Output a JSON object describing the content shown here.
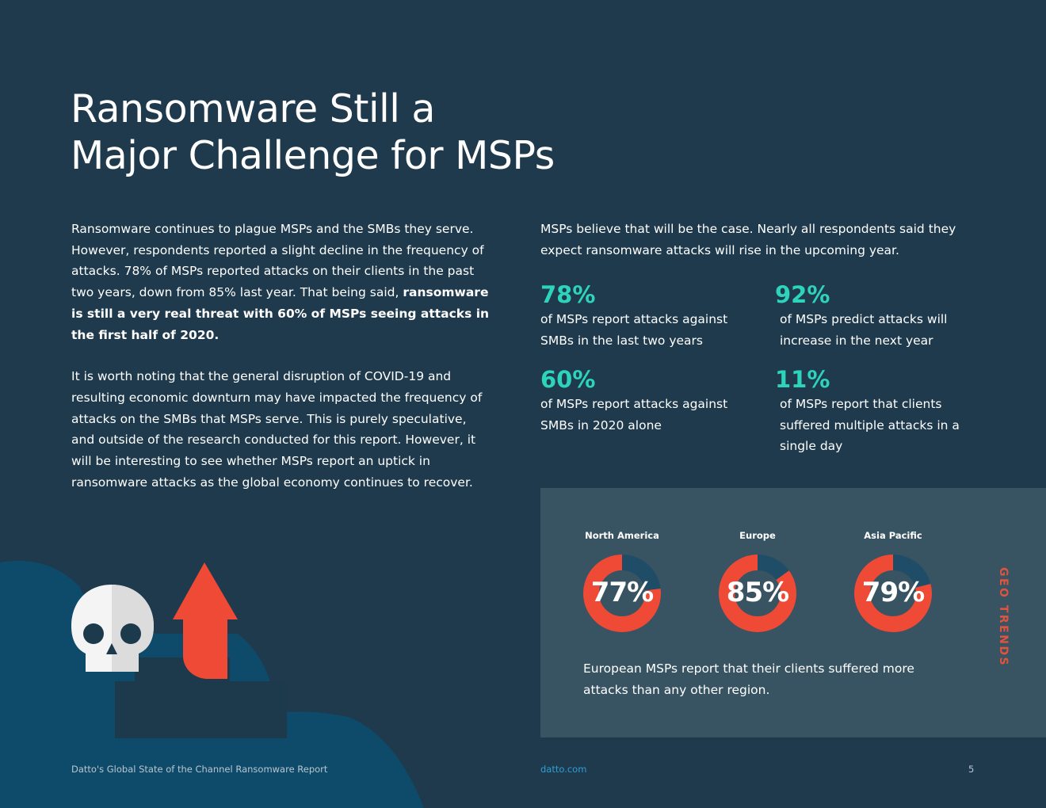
{
  "title": {
    "line1": "Ransomware Still a",
    "line2": "Major Challenge for MSPs"
  },
  "left_column": {
    "p1_text": "Ransomware continues to plague MSPs and the SMBs they serve. However, respondents reported a slight decline in the frequency of attacks. 78% of MSPs reported attacks on their clients in the past two years, down from 85% last year. That being said,",
    "p1_bold": "ransomware is still a very real threat with 60% of MSPs seeing attacks in the first half of 2020.",
    "p2": "It is worth noting that the general disruption of COVID-19 and resulting economic downturn may have impacted the frequency of attacks on the SMBs that MSPs serve. This is purely speculative, and outside of the research conducted for this report. However, it will be interesting to see whether MSPs report an uptick in ransomware attacks as the global economy continues to recover."
  },
  "right_column": {
    "intro": "MSPs believe that will be the case. Nearly all respondents said they expect ransomware attacks will rise in the upcoming year."
  },
  "stats": [
    {
      "value": "78%",
      "text": "of MSPs report attacks against SMBs in the last two years"
    },
    {
      "value": "92%",
      "text": "of MSPs predict attacks will increase in the next year"
    },
    {
      "value": "60%",
      "text": "of MSPs report attacks against SMBs in 2020 alone"
    },
    {
      "value": "11%",
      "text": "of MSPs report that clients suffered multiple attacks in a single day"
    }
  ],
  "geo_trends": {
    "tag": "GEO TRENDS",
    "note": "European MSPs report that their clients suffered more attacks than any other region.",
    "colors": {
      "fill": "#ef4a36",
      "remainder": "#1f4d68"
    }
  },
  "chart_data": {
    "type": "pie",
    "categories": [
      "North America",
      "Europe",
      "Asia Pacific"
    ],
    "values": [
      77,
      85,
      79
    ],
    "labels": [
      "77%",
      "85%",
      "79%"
    ]
  },
  "footer": {
    "report": "Datto's Global State of the Channel Ransomware Report",
    "url": "datto.com",
    "page": "5"
  }
}
